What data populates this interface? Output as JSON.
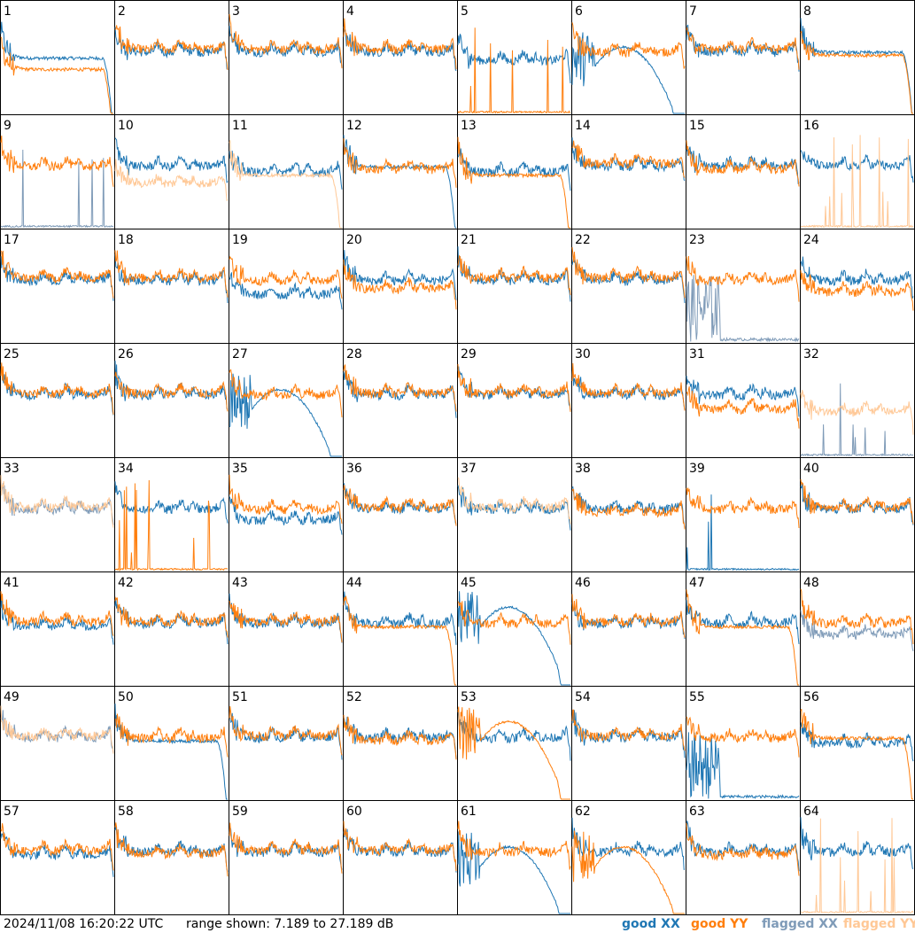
{
  "chart_data": {
    "type": "line",
    "grid_rows": 8,
    "grid_cols": 8,
    "panel_numbers": [
      "1",
      "2",
      "3",
      "4",
      "5",
      "6",
      "7",
      "8",
      "9",
      "10",
      "11",
      "12",
      "13",
      "14",
      "15",
      "16",
      "17",
      "18",
      "19",
      "20",
      "21",
      "22",
      "23",
      "24",
      "25",
      "26",
      "27",
      "28",
      "29",
      "30",
      "31",
      "32",
      "33",
      "34",
      "35",
      "36",
      "37",
      "38",
      "39",
      "40",
      "41",
      "42",
      "43",
      "44",
      "45",
      "46",
      "47",
      "48",
      "49",
      "50",
      "51",
      "52",
      "53",
      "54",
      "55",
      "56",
      "57",
      "58",
      "59",
      "60",
      "61",
      "62",
      "63",
      "64"
    ],
    "ylim": [
      7.189,
      27.189
    ],
    "colors": {
      "good_xx": "#1f77b4",
      "good_yy": "#ff7f0e",
      "flagged_xx": "#7f9bb8",
      "flagged_yy": "#ffc896"
    },
    "profiles": {
      "normal": "Bandpass with peaks near both edges and small bumps in the middle, roughly 16 to 23 dB",
      "rolloff": "Strong peak at left, flat middle near 18 dB, steep drop at right edge",
      "hump": "Noisy low section at left then slow rise and decline, dropping at right edge",
      "spikes": "Mostly near bottom of range with a few tall narrow spikes",
      "noise": "Dense noisy section on the left then near-zero",
      "hidden": "Not shown"
    },
    "panels": [
      {
        "n": "1",
        "xx": {
          "p": "rolloff",
          "q": "good",
          "v": -1
        },
        "yy": {
          "p": "rolloff",
          "q": "good",
          "v": -3
        }
      },
      {
        "n": "2",
        "xx": {
          "p": "normal",
          "q": "good",
          "v": 0
        },
        "yy": {
          "p": "normal",
          "q": "good",
          "v": 0.5
        }
      },
      {
        "n": "3",
        "xx": {
          "p": "normal",
          "q": "good",
          "v": 0
        },
        "yy": {
          "p": "normal",
          "q": "good",
          "v": 0.5
        }
      },
      {
        "n": "4",
        "xx": {
          "p": "normal",
          "q": "good",
          "v": 0
        },
        "yy": {
          "p": "normal",
          "q": "good",
          "v": 0.5
        }
      },
      {
        "n": "5",
        "xx": {
          "p": "normal",
          "q": "good",
          "v": -1.5
        },
        "yy": {
          "p": "spikes",
          "q": "good",
          "v": 0
        }
      },
      {
        "n": "6",
        "xx": {
          "p": "hump",
          "q": "good",
          "v": 0
        },
        "yy": {
          "p": "normal",
          "q": "good",
          "v": 0
        }
      },
      {
        "n": "7",
        "xx": {
          "p": "normal",
          "q": "good",
          "v": 0
        },
        "yy": {
          "p": "normal",
          "q": "good",
          "v": 0.5
        }
      },
      {
        "n": "8",
        "xx": {
          "p": "rolloff",
          "q": "good",
          "v": 0
        },
        "yy": {
          "p": "rolloff",
          "q": "good",
          "v": -0.5
        }
      },
      {
        "n": "9",
        "xx": {
          "p": "spikes",
          "q": "flagged",
          "v": 0
        },
        "yy": {
          "p": "normal",
          "q": "good",
          "v": 0
        }
      },
      {
        "n": "10",
        "xx": {
          "p": "normal",
          "q": "good",
          "v": 0
        },
        "yy": {
          "p": "normal",
          "q": "flagged",
          "v": -3
        }
      },
      {
        "n": "11",
        "xx": {
          "p": "normal",
          "q": "good",
          "v": -1
        },
        "yy": {
          "p": "rolloff",
          "q": "flagged",
          "v": -1.5
        }
      },
      {
        "n": "12",
        "xx": {
          "p": "rolloff",
          "q": "good",
          "v": 0
        },
        "yy": {
          "p": "normal",
          "q": "good",
          "v": -0.5
        }
      },
      {
        "n": "13",
        "xx": {
          "p": "normal",
          "q": "good",
          "v": -1
        },
        "yy": {
          "p": "rolloff",
          "q": "good",
          "v": -1.5
        }
      },
      {
        "n": "14",
        "xx": {
          "p": "normal",
          "q": "good",
          "v": 0
        },
        "yy": {
          "p": "normal",
          "q": "good",
          "v": 0.5
        }
      },
      {
        "n": "15",
        "xx": {
          "p": "normal",
          "q": "good",
          "v": 0
        },
        "yy": {
          "p": "normal",
          "q": "good",
          "v": -0.5
        }
      },
      {
        "n": "16",
        "xx": {
          "p": "normal",
          "q": "good",
          "v": 0
        },
        "yy": {
          "p": "spikes",
          "q": "flagged",
          "v": 0
        }
      },
      {
        "n": "17",
        "xx": {
          "p": "normal",
          "q": "good",
          "v": 0
        },
        "yy": {
          "p": "normal",
          "q": "good",
          "v": 0.5
        }
      },
      {
        "n": "18",
        "xx": {
          "p": "normal",
          "q": "good",
          "v": 0
        },
        "yy": {
          "p": "normal",
          "q": "good",
          "v": 0.5
        }
      },
      {
        "n": "19",
        "xx": {
          "p": "normal",
          "q": "good",
          "v": -2.5
        },
        "yy": {
          "p": "normal",
          "q": "good",
          "v": 0
        }
      },
      {
        "n": "20",
        "xx": {
          "p": "normal",
          "q": "good",
          "v": 0
        },
        "yy": {
          "p": "normal",
          "q": "good",
          "v": -1.5
        }
      },
      {
        "n": "21",
        "xx": {
          "p": "normal",
          "q": "good",
          "v": 0
        },
        "yy": {
          "p": "normal",
          "q": "good",
          "v": 0.5
        }
      },
      {
        "n": "22",
        "xx": {
          "p": "normal",
          "q": "good",
          "v": 0
        },
        "yy": {
          "p": "normal",
          "q": "good",
          "v": 0.5
        }
      },
      {
        "n": "23",
        "xx": {
          "p": "noise",
          "q": "flagged",
          "v": 0
        },
        "yy": {
          "p": "normal",
          "q": "good",
          "v": 0
        }
      },
      {
        "n": "24",
        "xx": {
          "p": "normal",
          "q": "good",
          "v": 0
        },
        "yy": {
          "p": "normal",
          "q": "good",
          "v": -2
        }
      },
      {
        "n": "25",
        "xx": {
          "p": "normal",
          "q": "good",
          "v": 0
        },
        "yy": {
          "p": "normal",
          "q": "good",
          "v": 0.2
        }
      },
      {
        "n": "26",
        "xx": {
          "p": "normal",
          "q": "good",
          "v": 0
        },
        "yy": {
          "p": "normal",
          "q": "good",
          "v": 0.3
        }
      },
      {
        "n": "27",
        "xx": {
          "p": "hump",
          "q": "good",
          "v": 0
        },
        "yy": {
          "p": "normal",
          "q": "good",
          "v": 0
        }
      },
      {
        "n": "28",
        "xx": {
          "p": "normal",
          "q": "good",
          "v": 0
        },
        "yy": {
          "p": "normal",
          "q": "good",
          "v": 0.3
        }
      },
      {
        "n": "29",
        "xx": {
          "p": "normal",
          "q": "good",
          "v": 0
        },
        "yy": {
          "p": "normal",
          "q": "good",
          "v": 0.3
        }
      },
      {
        "n": "30",
        "xx": {
          "p": "normal",
          "q": "good",
          "v": 0
        },
        "yy": {
          "p": "normal",
          "q": "good",
          "v": 0.3
        }
      },
      {
        "n": "31",
        "xx": {
          "p": "normal",
          "q": "good",
          "v": 0
        },
        "yy": {
          "p": "normal",
          "q": "good",
          "v": -2.5
        }
      },
      {
        "n": "32",
        "xx": {
          "p": "spikes",
          "q": "flagged",
          "v": 0
        },
        "yy": {
          "p": "normal",
          "q": "flagged",
          "v": -3
        }
      },
      {
        "n": "33",
        "xx": {
          "p": "normal",
          "q": "flagged",
          "v": 0
        },
        "yy": {
          "p": "normal",
          "q": "flagged",
          "v": 0.3
        }
      },
      {
        "n": "34",
        "xx": {
          "p": "normal",
          "q": "good",
          "v": 0
        },
        "yy": {
          "p": "spikes",
          "q": "good",
          "v": 0
        }
      },
      {
        "n": "35",
        "xx": {
          "p": "normal",
          "q": "good",
          "v": -2
        },
        "yy": {
          "p": "normal",
          "q": "good",
          "v": 0
        }
      },
      {
        "n": "36",
        "xx": {
          "p": "normal",
          "q": "good",
          "v": 0
        },
        "yy": {
          "p": "normal",
          "q": "good",
          "v": 0.3
        }
      },
      {
        "n": "37",
        "xx": {
          "p": "normal",
          "q": "good",
          "v": 0
        },
        "yy": {
          "p": "normal",
          "q": "flagged",
          "v": 0.3
        }
      },
      {
        "n": "38",
        "xx": {
          "p": "normal",
          "q": "good",
          "v": 0
        },
        "yy": {
          "p": "normal",
          "q": "good",
          "v": -0.5
        }
      },
      {
        "n": "39",
        "xx": {
          "p": "spikes",
          "q": "good",
          "v": 0
        },
        "yy": {
          "p": "normal",
          "q": "good",
          "v": 0
        }
      },
      {
        "n": "40",
        "xx": {
          "p": "normal",
          "q": "good",
          "v": 0
        },
        "yy": {
          "p": "normal",
          "q": "good",
          "v": 0.3
        }
      },
      {
        "n": "41",
        "xx": {
          "p": "normal",
          "q": "good",
          "v": -0.5
        },
        "yy": {
          "p": "normal",
          "q": "good",
          "v": 0.3
        }
      },
      {
        "n": "42",
        "xx": {
          "p": "normal",
          "q": "good",
          "v": 0
        },
        "yy": {
          "p": "normal",
          "q": "good",
          "v": 0.3
        }
      },
      {
        "n": "43",
        "xx": {
          "p": "normal",
          "q": "good",
          "v": 0
        },
        "yy": {
          "p": "normal",
          "q": "good",
          "v": 0.3
        }
      },
      {
        "n": "44",
        "xx": {
          "p": "normal",
          "q": "good",
          "v": 0
        },
        "yy": {
          "p": "rolloff",
          "q": "good",
          "v": -0.5
        }
      },
      {
        "n": "45",
        "xx": {
          "p": "hump",
          "q": "good",
          "v": 2
        },
        "yy": {
          "p": "normal",
          "q": "good",
          "v": 0
        }
      },
      {
        "n": "46",
        "xx": {
          "p": "normal",
          "q": "good",
          "v": 0
        },
        "yy": {
          "p": "normal",
          "q": "good",
          "v": 0.3
        }
      },
      {
        "n": "47",
        "xx": {
          "p": "normal",
          "q": "good",
          "v": 0
        },
        "yy": {
          "p": "rolloff",
          "q": "good",
          "v": -0.5
        }
      },
      {
        "n": "48",
        "xx": {
          "p": "normal",
          "q": "flagged",
          "v": -2
        },
        "yy": {
          "p": "normal",
          "q": "good",
          "v": 0
        }
      },
      {
        "n": "49",
        "xx": {
          "p": "normal",
          "q": "flagged",
          "v": 0
        },
        "yy": {
          "p": "normal",
          "q": "flagged",
          "v": 0.3
        }
      },
      {
        "n": "50",
        "xx": {
          "p": "rolloff",
          "q": "good",
          "v": -0.5
        },
        "yy": {
          "p": "normal",
          "q": "good",
          "v": 0
        }
      },
      {
        "n": "51",
        "xx": {
          "p": "normal",
          "q": "good",
          "v": 0
        },
        "yy": {
          "p": "normal",
          "q": "good",
          "v": 0.3
        }
      },
      {
        "n": "52",
        "xx": {
          "p": "normal",
          "q": "good",
          "v": 0
        },
        "yy": {
          "p": "normal",
          "q": "good",
          "v": -0.5
        }
      },
      {
        "n": "53",
        "xx": {
          "p": "normal",
          "q": "good",
          "v": 0
        },
        "yy": {
          "p": "hump",
          "q": "good",
          "v": 2
        }
      },
      {
        "n": "54",
        "xx": {
          "p": "normal",
          "q": "good",
          "v": 0
        },
        "yy": {
          "p": "normal",
          "q": "good",
          "v": 0.3
        }
      },
      {
        "n": "55",
        "xx": {
          "p": "noise",
          "q": "good",
          "v": 0
        },
        "yy": {
          "p": "normal",
          "q": "good",
          "v": 0
        }
      },
      {
        "n": "56",
        "xx": {
          "p": "normal",
          "q": "good",
          "v": -1
        },
        "yy": {
          "p": "rolloff",
          "q": "good",
          "v": 0
        }
      },
      {
        "n": "57",
        "xx": {
          "p": "normal",
          "q": "good",
          "v": -0.5
        },
        "yy": {
          "p": "normal",
          "q": "good",
          "v": 0.3
        }
      },
      {
        "n": "58",
        "xx": {
          "p": "normal",
          "q": "good",
          "v": 0
        },
        "yy": {
          "p": "normal",
          "q": "good",
          "v": -0.3
        }
      },
      {
        "n": "59",
        "xx": {
          "p": "normal",
          "q": "good",
          "v": 0
        },
        "yy": {
          "p": "normal",
          "q": "good",
          "v": 0.3
        }
      },
      {
        "n": "60",
        "xx": {
          "p": "normal",
          "q": "good",
          "v": 0
        },
        "yy": {
          "p": "normal",
          "q": "good",
          "v": 0.3
        }
      },
      {
        "n": "61",
        "xx": {
          "p": "hump",
          "q": "good",
          "v": 0
        },
        "yy": {
          "p": "normal",
          "q": "good",
          "v": 0
        }
      },
      {
        "n": "62",
        "xx": {
          "p": "normal",
          "q": "good",
          "v": 0
        },
        "yy": {
          "p": "hump",
          "q": "good",
          "v": 0
        }
      },
      {
        "n": "63",
        "xx": {
          "p": "normal",
          "q": "good",
          "v": 0
        },
        "yy": {
          "p": "normal",
          "q": "good",
          "v": -0.5
        }
      },
      {
        "n": "64",
        "xx": {
          "p": "normal",
          "q": "good",
          "v": 0
        },
        "yy": {
          "p": "spikes",
          "q": "flagged",
          "v": 0
        }
      }
    ]
  },
  "footer": {
    "timestamp": "2024/11/08 16:20:22 UTC",
    "range_text": "range shown: 7.189 to 27.189 dB"
  },
  "legend": {
    "good_xx": "good XX",
    "good_yy": "good YY",
    "flagged_xx": "flagged XX",
    "flagged_yy": "flagged YY"
  }
}
